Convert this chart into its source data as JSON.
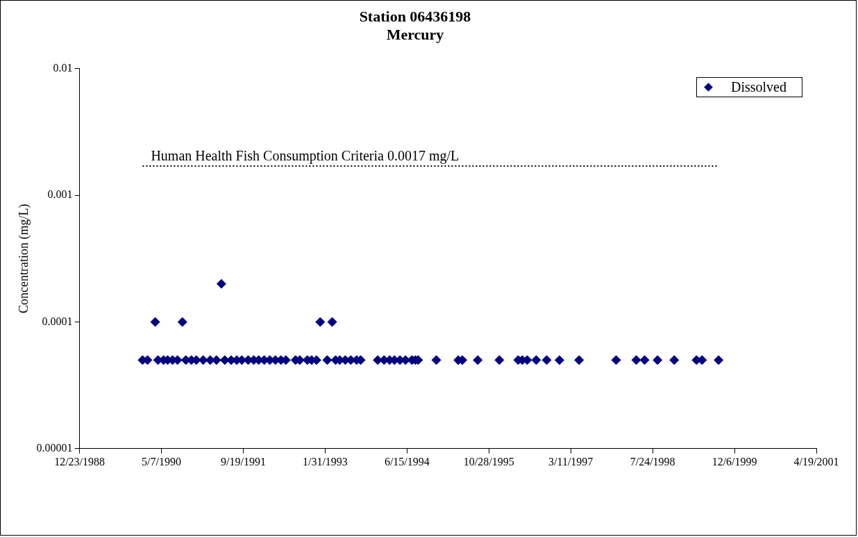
{
  "chart_data": {
    "type": "scatter",
    "title": "Station 06436198\nMercury",
    "ylabel": "Concentration (mg/L)",
    "log": "y",
    "grid": false,
    "legend": "top right",
    "marker": "diamond",
    "xlim": [
      "1988-12-23",
      "2001-04-19"
    ],
    "xticks": [
      {
        "value": "1988-12-23",
        "label": "12/23/1988"
      },
      {
        "value": "1990-05-07",
        "label": "5/7/1990"
      },
      {
        "value": "1991-09-19",
        "label": "9/19/1991"
      },
      {
        "value": "1993-01-31",
        "label": "1/31/1993"
      },
      {
        "value": "1994-06-15",
        "label": "6/15/1994"
      },
      {
        "value": "1995-10-28",
        "label": "10/28/1995"
      },
      {
        "value": "1997-03-11",
        "label": "3/11/1997"
      },
      {
        "value": "1998-07-24",
        "label": "7/24/1998"
      },
      {
        "value": "1999-12-06",
        "label": "12/6/1999"
      },
      {
        "value": "2001-04-19",
        "label": "4/19/2001"
      }
    ],
    "ylim": [
      1e-05,
      0.01
    ],
    "yticks": [
      {
        "value": 1e-05,
        "label": "0.00001"
      },
      {
        "value": 0.0001,
        "label": "0.0001"
      },
      {
        "value": 0.001,
        "label": "0.001"
      },
      {
        "value": 0.01,
        "label": "0.01"
      }
    ],
    "ref_lines": [
      {
        "axis": "y",
        "value": 0.0017,
        "label": "Human Health Fish Consumption Criteria 0.0017 mg/L",
        "color": "#000000",
        "line_style": "dotted"
      }
    ],
    "series": [
      {
        "name": "Dissolved",
        "color": "#000080",
        "x": [
          "1990-01-12",
          "1990-02-11",
          "1990-03-30",
          "1990-04-16",
          "1990-05-20",
          "1990-06-14",
          "1990-07-14",
          "1990-08-13",
          "1990-09-12",
          "1990-10-03",
          "1990-11-06",
          "1990-12-06",
          "1991-01-17",
          "1991-03-01",
          "1991-04-08",
          "1991-05-08",
          "1991-05-29",
          "1991-07-07",
          "1991-08-10",
          "1991-09-10",
          "1991-10-19",
          "1991-11-22",
          "1991-12-22",
          "1992-01-25",
          "1992-02-28",
          "1992-04-02",
          "1992-05-06",
          "1992-06-05",
          "1992-08-03",
          "1992-08-29",
          "1992-10-14",
          "1992-11-09",
          "1992-12-09",
          "1993-01-01",
          "1993-02-13",
          "1993-03-15",
          "1993-04-05",
          "1993-04-30",
          "1993-06-03",
          "1993-07-07",
          "1993-08-11",
          "1993-09-05",
          "1993-12-18",
          "1994-01-26",
          "1994-03-01",
          "1994-03-30",
          "1994-05-03",
          "1994-06-06",
          "1994-07-15",
          "1994-08-05",
          "1994-08-22",
          "1994-12-11",
          "1995-04-24",
          "1995-05-19",
          "1995-08-21",
          "1995-12-31",
          "1996-04-24",
          "1996-05-19",
          "1996-06-18",
          "1996-08-12",
          "1996-10-15",
          "1997-01-01",
          "1997-05-01",
          "1997-12-13",
          "1998-04-15",
          "1998-06-05",
          "1998-08-23",
          "1998-12-03",
          "1999-04-18",
          "1999-05-22",
          "1999-08-31"
        ],
        "values": [
          5e-05,
          5e-05,
          0.0001,
          5e-05,
          5e-05,
          5e-05,
          5e-05,
          5e-05,
          0.0001,
          5e-05,
          5e-05,
          5e-05,
          5e-05,
          5e-05,
          5e-05,
          0.0002,
          5e-05,
          5e-05,
          5e-05,
          5e-05,
          5e-05,
          5e-05,
          5e-05,
          5e-05,
          5e-05,
          5e-05,
          5e-05,
          5e-05,
          5e-05,
          5e-05,
          5e-05,
          5e-05,
          5e-05,
          0.0001,
          5e-05,
          0.0001,
          5e-05,
          5e-05,
          5e-05,
          5e-05,
          5e-05,
          5e-05,
          5e-05,
          5e-05,
          5e-05,
          5e-05,
          5e-05,
          5e-05,
          5e-05,
          5e-05,
          5e-05,
          5e-05,
          5e-05,
          5e-05,
          5e-05,
          5e-05,
          5e-05,
          5e-05,
          5e-05,
          5e-05,
          5e-05,
          5e-05,
          5e-05,
          5e-05,
          5e-05,
          5e-05,
          5e-05,
          5e-05,
          5e-05,
          5e-05,
          5e-05
        ]
      }
    ]
  }
}
